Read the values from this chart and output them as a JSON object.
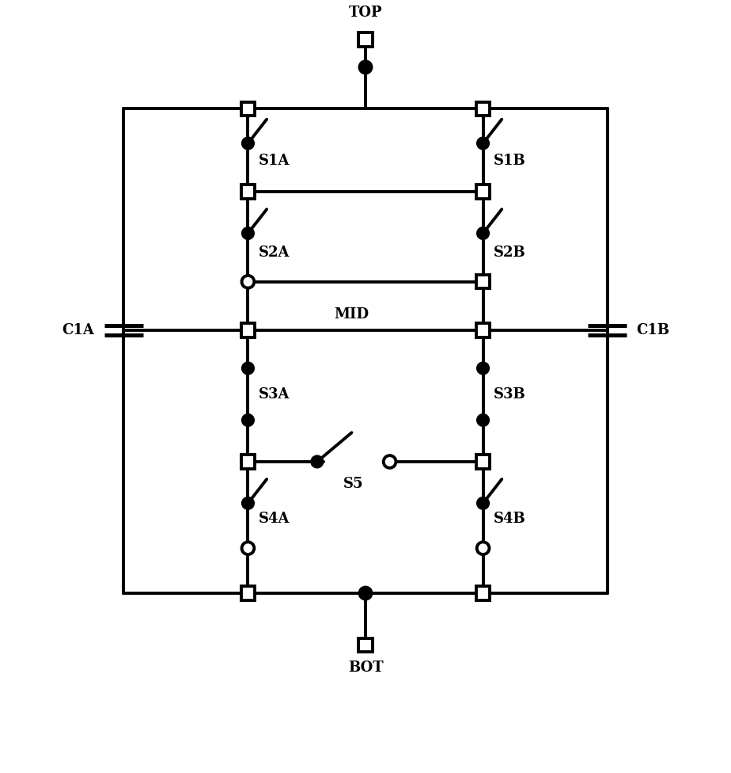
{
  "bg_color": "#ffffff",
  "line_color": "#000000",
  "lw": 2.8,
  "fs": 13,
  "fw": "bold",
  "xlim": [
    0,
    10
  ],
  "ylim": [
    0,
    11
  ]
}
